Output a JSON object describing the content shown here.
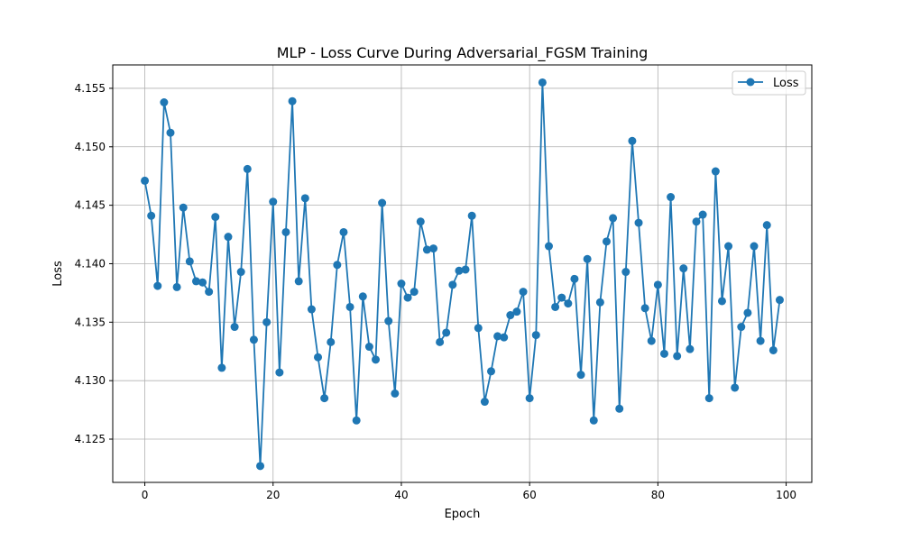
{
  "chart_data": {
    "type": "line",
    "title": "MLP - Loss Curve During Adversarial_FGSM Training",
    "xlabel": "Epoch",
    "ylabel": "Loss",
    "xlim": [
      -5,
      104
    ],
    "ylim": [
      4.1213,
      4.157
    ],
    "xticks": [
      0,
      20,
      40,
      60,
      80,
      100
    ],
    "yticks": [
      4.125,
      4.13,
      4.135,
      4.14,
      4.145,
      4.15,
      4.155
    ],
    "xtick_labels": [
      "0",
      "20",
      "40",
      "60",
      "80",
      "100"
    ],
    "ytick_labels": [
      "4.125",
      "4.130",
      "4.135",
      "4.140",
      "4.145",
      "4.150",
      "4.155"
    ],
    "grid": true,
    "legend": {
      "position": "top-right",
      "entries": [
        "Loss"
      ]
    },
    "color": "#1f77b4",
    "series": [
      {
        "name": "Loss",
        "x": [
          0,
          1,
          2,
          3,
          4,
          5,
          6,
          7,
          8,
          9,
          10,
          11,
          12,
          13,
          14,
          15,
          16,
          17,
          18,
          19,
          20,
          21,
          22,
          23,
          24,
          25,
          26,
          27,
          28,
          29,
          30,
          31,
          32,
          33,
          34,
          35,
          36,
          37,
          38,
          39,
          40,
          41,
          42,
          43,
          44,
          45,
          46,
          47,
          48,
          49,
          50,
          51,
          52,
          53,
          54,
          55,
          56,
          57,
          58,
          59,
          60,
          61,
          62,
          63,
          64,
          65,
          66,
          67,
          68,
          69,
          70,
          71,
          72,
          73,
          74,
          75,
          76,
          77,
          78,
          79,
          80,
          81,
          82,
          83,
          84,
          85,
          86,
          87,
          88,
          89,
          90,
          91,
          92,
          93,
          94,
          95,
          96,
          97,
          98,
          99
        ],
        "values": [
          4.1471,
          4.1441,
          4.1381,
          4.1538,
          4.1512,
          4.138,
          4.1448,
          4.1402,
          4.1385,
          4.1384,
          4.1376,
          4.144,
          4.1311,
          4.1423,
          4.1346,
          4.1393,
          4.1481,
          4.1335,
          4.1227,
          4.135,
          4.1453,
          4.1307,
          4.1427,
          4.1539,
          4.1385,
          4.1456,
          4.1361,
          4.132,
          4.1285,
          4.1333,
          4.1399,
          4.1427,
          4.1363,
          4.1266,
          4.1372,
          4.1329,
          4.1318,
          4.1452,
          4.1351,
          4.1289,
          4.1383,
          4.1371,
          4.1376,
          4.1436,
          4.1412,
          4.1413,
          4.1333,
          4.1341,
          4.1382,
          4.1394,
          4.1395,
          4.1441,
          4.1345,
          4.1282,
          4.1308,
          4.1338,
          4.1337,
          4.1356,
          4.1359,
          4.1376,
          4.1285,
          4.1339,
          4.1555,
          4.1415,
          4.1363,
          4.1371,
          4.1366,
          4.1387,
          4.1305,
          4.1404,
          4.1266,
          4.1367,
          4.1419,
          4.1439,
          4.1276,
          4.1393,
          4.1505,
          4.1435,
          4.1362,
          4.1334,
          4.1382,
          4.1323,
          4.1457,
          4.1321,
          4.1396,
          4.1327,
          4.1436,
          4.1442,
          4.1285,
          4.1479,
          4.1368,
          4.1415,
          4.1294,
          4.1346,
          4.1358,
          4.1415,
          4.1334,
          4.1433,
          4.1326,
          4.1369
        ]
      }
    ]
  }
}
